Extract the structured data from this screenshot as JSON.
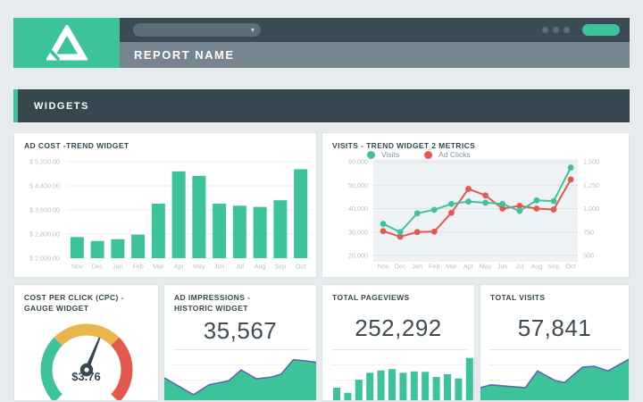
{
  "colors": {
    "accent_green": "#3dc39c",
    "accent_red": "#e4584e",
    "accent_yellow": "#e8b64c",
    "dark_slate": "#36474f",
    "topbar_dark": "#3b4a54",
    "header_gray": "#76858f",
    "muted_text": "#b9c3ca",
    "spark_stroke": "#5b67ad",
    "plot_bg": "#eef2f5"
  },
  "topbar": {
    "report_name": "REPORT NAME",
    "search_value": "",
    "menu_dots_count": 3,
    "action_pill_label": ""
  },
  "section": {
    "title": "WIDGETS"
  },
  "widgets": {
    "ad_cost": {
      "title": "AD COST -TREND WIDGET"
    },
    "visits": {
      "title": "VISITS - TREND WIDGET 2 METRICS"
    },
    "cpc": {
      "title": "COST PER CLICK (CPC) - GAUGE WIDGET",
      "value": "$3.76"
    },
    "impressions": {
      "title": "AD IMPRESSIONS - HISTORIC WIDGET",
      "value": "35,567"
    },
    "pageviews": {
      "title": "TOTAL PAGEVIEWS",
      "value": "252,292"
    },
    "total_visits": {
      "title": "TOTAL VISITS",
      "value": "57,841"
    }
  },
  "chart_data": [
    {
      "id": "ad-cost",
      "type": "bar",
      "title": "AD COST -TREND WIDGET",
      "categories": [
        "Nov",
        "Dec",
        "Jan",
        "Feb",
        "Mar",
        "Apr",
        "May",
        "Jun",
        "Jul",
        "Aug",
        "Sep",
        "Oct"
      ],
      "values": [
        2700,
        2570,
        2630,
        2780,
        3810,
        4880,
        4730,
        3810,
        3740,
        3700,
        3920,
        4950
      ],
      "ylim": [
        2000,
        5200
      ],
      "y_ticks": [
        "$ 5,200.00",
        "$ 4,400.00",
        "$ 3,600.00",
        "$ 2,800.00",
        "$ 2,000.00"
      ],
      "bar_color": "#3dc39c",
      "grid": true
    },
    {
      "id": "visits-trend",
      "type": "line",
      "title": "VISITS - TREND WIDGET 2 METRICS",
      "categories": [
        "Nov",
        "Dec",
        "Jan",
        "Feb",
        "Mar",
        "Apr",
        "May",
        "Jun",
        "Jul",
        "Aug",
        "Sep",
        "Oct"
      ],
      "series": [
        {
          "name": "Visits",
          "color": "#3dc39c",
          "axis": "left",
          "values": [
            33500,
            30000,
            38000,
            39500,
            42000,
            43000,
            42500,
            42000,
            39000,
            43500,
            43200,
            57500
          ]
        },
        {
          "name": "Ad Clicks",
          "color": "#e4584e",
          "axis": "right",
          "values": [
            760,
            700,
            750,
            755,
            955,
            1210,
            1140,
            1000,
            1030,
            1000,
            990,
            1310
          ]
        }
      ],
      "left_axis": {
        "min": 20000,
        "max": 60000,
        "ticks": [
          "60,000",
          "50,000",
          "40,000",
          "30,000",
          "20,000"
        ]
      },
      "right_axis": {
        "min": 500,
        "max": 1500,
        "ticks": [
          "1,500",
          "1,250",
          "1,000",
          "750",
          "500"
        ]
      },
      "legend_position": "top",
      "plot_bg": "#eef2f5",
      "grid": true
    },
    {
      "id": "cpc-gauge",
      "type": "gauge",
      "value": 3.76,
      "value_label": "$3.76",
      "segments": [
        {
          "color": "#3dc39c",
          "from": -135,
          "to": -45
        },
        {
          "color": "#e8b64c",
          "from": -45,
          "to": 45
        },
        {
          "color": "#e4584e",
          "from": 45,
          "to": 135
        }
      ],
      "needle_angle": 22
    },
    {
      "id": "impressions-spark",
      "type": "area",
      "points": [
        [
          0,
          0.48
        ],
        [
          0.19,
          0.12
        ],
        [
          0.29,
          0.33
        ],
        [
          0.42,
          0.42
        ],
        [
          0.5,
          0.65
        ],
        [
          0.6,
          0.46
        ],
        [
          0.7,
          0.5
        ],
        [
          0.76,
          0.56
        ],
        [
          0.84,
          0.87
        ],
        [
          0.91,
          0.85
        ],
        [
          1,
          0.81
        ]
      ],
      "fill": "#3dc39c",
      "stroke": "#5b67ad"
    },
    {
      "id": "pageviews-spark",
      "type": "bar",
      "values": [
        0.27,
        0.16,
        0.44,
        0.59,
        0.64,
        0.67,
        0.59,
        0.62,
        0.61,
        0.5,
        0.56,
        0.47,
        0.91
      ],
      "bar_color": "#3dc39c"
    },
    {
      "id": "total-visits-spark",
      "type": "area",
      "points": [
        [
          0,
          0.27
        ],
        [
          0.07,
          0.33
        ],
        [
          0.22,
          0.29
        ],
        [
          0.3,
          0.27
        ],
        [
          0.38,
          0.63
        ],
        [
          0.5,
          0.42
        ],
        [
          0.56,
          0.38
        ],
        [
          0.68,
          0.71
        ],
        [
          0.76,
          0.73
        ],
        [
          0.85,
          0.63
        ],
        [
          1,
          0.9
        ]
      ],
      "fill": "#3dc39c",
      "stroke": "#5b67ad"
    }
  ]
}
